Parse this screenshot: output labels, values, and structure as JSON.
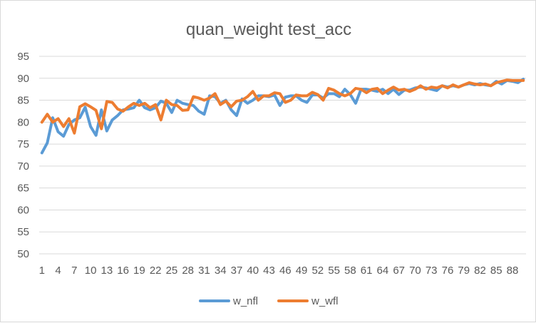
{
  "chart_data": {
    "type": "line",
    "title": "quan_weight test_acc",
    "xlabel": "",
    "ylabel": "",
    "ylim": [
      50,
      95
    ],
    "yticks": [
      50,
      55,
      60,
      65,
      70,
      75,
      80,
      85,
      90,
      95
    ],
    "grid": true,
    "legend_position": "bottom",
    "x": [
      1,
      2,
      3,
      4,
      5,
      6,
      7,
      8,
      9,
      10,
      11,
      12,
      13,
      14,
      15,
      16,
      17,
      18,
      19,
      20,
      21,
      22,
      23,
      24,
      25,
      26,
      27,
      28,
      29,
      30,
      31,
      32,
      33,
      34,
      35,
      36,
      37,
      38,
      39,
      40,
      41,
      42,
      43,
      44,
      45,
      46,
      47,
      48,
      49,
      50,
      51,
      52,
      53,
      54,
      55,
      56,
      57,
      58,
      59,
      60,
      61,
      62,
      63,
      64,
      65,
      66,
      67,
      68,
      69,
      70,
      71,
      72,
      73,
      74,
      75,
      76,
      77,
      78,
      79,
      80,
      81,
      82,
      83,
      84,
      85,
      86,
      87,
      88,
      89,
      90
    ],
    "xticks": [
      1,
      4,
      7,
      10,
      13,
      16,
      19,
      22,
      25,
      28,
      31,
      34,
      37,
      40,
      43,
      46,
      49,
      52,
      55,
      58,
      61,
      64,
      67,
      70,
      73,
      76,
      79,
      82,
      85,
      88
    ],
    "series": [
      {
        "name": "w_nfl",
        "color": "#5b9bd5",
        "values": [
          73.0,
          75.3,
          81.0,
          77.8,
          76.8,
          79.5,
          80.5,
          81.0,
          83.4,
          79.0,
          77.0,
          82.8,
          78.0,
          80.5,
          81.5,
          82.8,
          83.0,
          83.3,
          85.0,
          83.3,
          82.8,
          83.3,
          84.8,
          84.3,
          82.2,
          85.0,
          84.3,
          84.0,
          83.8,
          82.5,
          81.8,
          86.0,
          85.8,
          84.3,
          85.0,
          82.8,
          81.5,
          85.3,
          84.3,
          85.0,
          86.0,
          86.0,
          85.8,
          86.2,
          83.8,
          85.7,
          86.0,
          86.0,
          85.0,
          84.5,
          86.2,
          86.2,
          85.5,
          86.5,
          86.5,
          85.8,
          87.5,
          86.3,
          84.3,
          87.5,
          87.5,
          87.3,
          87.0,
          87.5,
          86.5,
          87.5,
          86.3,
          87.3,
          87.3,
          87.8,
          88.0,
          87.8,
          87.5,
          87.2,
          88.3,
          88.0,
          88.3,
          88.0,
          88.5,
          88.8,
          88.5,
          88.8,
          88.5,
          88.3,
          89.3,
          88.7,
          89.5,
          89.3,
          89.0,
          89.8
        ]
      },
      {
        "name": "w_wfl",
        "color": "#ed7d31",
        "values": [
          80.0,
          81.8,
          80.0,
          80.8,
          79.0,
          80.8,
          77.5,
          83.5,
          84.2,
          83.5,
          82.7,
          78.5,
          84.7,
          84.5,
          83.0,
          82.5,
          83.5,
          84.3,
          83.8,
          84.3,
          83.3,
          84.0,
          80.5,
          85.0,
          84.0,
          83.8,
          82.7,
          82.8,
          85.8,
          85.5,
          85.0,
          85.5,
          86.5,
          84.0,
          84.8,
          83.5,
          84.8,
          85.0,
          85.8,
          87.0,
          85.0,
          86.0,
          86.0,
          86.7,
          86.5,
          84.5,
          85.0,
          86.2,
          86.0,
          86.0,
          86.8,
          86.3,
          85.0,
          87.7,
          87.3,
          86.5,
          86.0,
          86.5,
          87.7,
          87.5,
          86.7,
          87.5,
          87.7,
          86.5,
          87.3,
          88.0,
          87.3,
          87.5,
          87.0,
          87.5,
          88.3,
          87.5,
          88.0,
          87.8,
          88.3,
          87.8,
          88.5,
          88.0,
          88.5,
          89.0,
          88.7,
          88.5,
          88.7,
          88.3,
          89.0,
          89.3,
          89.6,
          89.5,
          89.5,
          89.5
        ]
      }
    ]
  }
}
